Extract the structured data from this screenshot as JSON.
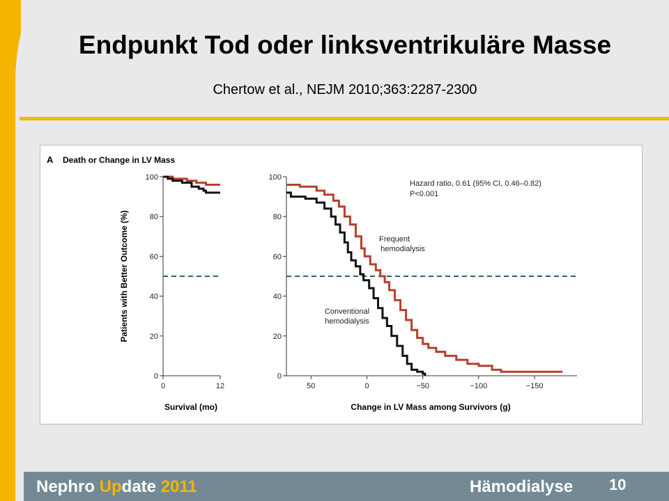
{
  "slide": {
    "title": "Endpunkt Tod oder linksventrikuläre Masse",
    "citation": "Chertow et al., NEJM 2010;363:2287-2300"
  },
  "footer": {
    "brand_a": "Nephro ",
    "brand_b": "Up",
    "brand_c": "date ",
    "brand_year": "2011",
    "section": "Hämodialyse",
    "page": "10"
  },
  "colors": {
    "frequent": "#b5402c",
    "conventional": "#111111",
    "reference": "#2a5c80",
    "accent": "#f5b400"
  },
  "chart_data": [
    {
      "type": "line",
      "panel_label": "A",
      "title": "Death or Change in LV Mass",
      "xlabel": "Survival (mo)",
      "ylabel": "Patients with Better Outcome (%)",
      "xlim": [
        0,
        12
      ],
      "ylim": [
        0,
        100
      ],
      "xticks": [
        "0",
        "12"
      ],
      "xtick_values": [
        0,
        12
      ],
      "yticks": [
        "0",
        "20",
        "40",
        "60",
        "80",
        "100"
      ],
      "ytick_values": [
        0,
        20,
        40,
        60,
        80,
        100
      ],
      "reference_line": 50,
      "series": [
        {
          "name": "Frequent hemodialysis",
          "step": true,
          "x": [
            0,
            2,
            5,
            7,
            9,
            12
          ],
          "y": [
            100,
            99,
            98,
            97,
            96,
            96
          ]
        },
        {
          "name": "Conventional hemodialysis",
          "step": true,
          "x": [
            0,
            1,
            2,
            4,
            6,
            7.5,
            8.5,
            9,
            12
          ],
          "y": [
            100,
            99,
            98,
            97,
            95,
            94,
            93,
            92,
            92
          ]
        }
      ]
    },
    {
      "type": "line",
      "xlabel": "Change in LV Mass among Survivors (g)",
      "ylabel": "",
      "xlim": [
        72,
        -188
      ],
      "ylim": [
        0,
        100
      ],
      "xticks": [
        "50",
        "0",
        "−50",
        "−100",
        "−150"
      ],
      "xtick_values": [
        50,
        0,
        -50,
        -100,
        -150
      ],
      "yticks": [
        "0",
        "20",
        "40",
        "60",
        "80",
        "100"
      ],
      "ytick_values": [
        0,
        20,
        40,
        60,
        80,
        100
      ],
      "reference_line": 50,
      "annotation": [
        "Hazard ratio, 0.61 (95% CI, 0.46–0.82)",
        "P<0.001"
      ],
      "series": [
        {
          "name": "Frequent hemodialysis",
          "label": [
            "Frequent",
            "hemodialysis"
          ],
          "step": true,
          "x": [
            72,
            60,
            45,
            38,
            30,
            25,
            20,
            15,
            10,
            5,
            2,
            -3,
            -8,
            -12,
            -16,
            -20,
            -25,
            -30,
            -35,
            -40,
            -45,
            -50,
            -55,
            -62,
            -70,
            -80,
            -90,
            -100,
            -112,
            -120,
            -175
          ],
          "y": [
            96,
            95,
            93,
            91,
            88,
            85,
            80,
            76,
            70,
            64,
            60,
            56,
            53,
            50,
            47,
            43,
            38,
            33,
            28,
            23,
            19,
            16,
            14,
            12,
            10,
            8,
            6,
            5,
            3,
            2,
            2
          ]
        },
        {
          "name": "Conventional hemodialysis",
          "label": [
            "Conventional",
            "hemodialysis"
          ],
          "step": true,
          "x": [
            72,
            68,
            55,
            45,
            38,
            32,
            28,
            24,
            20,
            17,
            14,
            10,
            6,
            3,
            -2,
            -6,
            -10,
            -14,
            -18,
            -22,
            -27,
            -32,
            -36,
            -40,
            -45,
            -50,
            -52
          ],
          "y": [
            92,
            90,
            89,
            87,
            84,
            80,
            76,
            72,
            67,
            62,
            58,
            55,
            51,
            48,
            44,
            39,
            34,
            29,
            25,
            20,
            15,
            10,
            6,
            3,
            2,
            1,
            0
          ]
        }
      ]
    }
  ]
}
